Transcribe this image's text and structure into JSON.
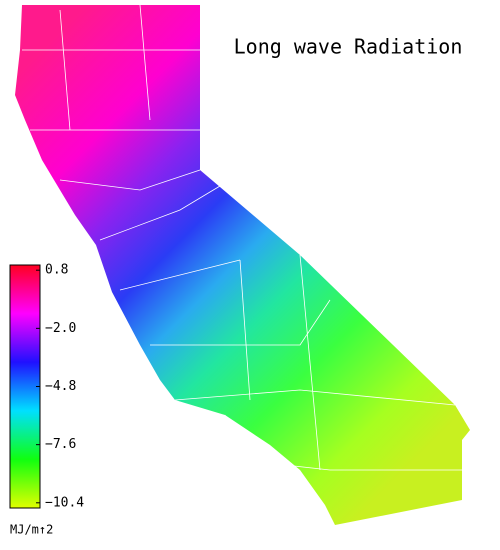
{
  "title": "Long wave Radiation",
  "colorbar": {
    "unit": "MJ/m↑2",
    "lim": [
      -10.65,
      1.05
    ],
    "ticks": [
      0.8,
      {
        "value": -2,
        "label": "−2.0"
      },
      {
        "value": -4.8,
        "label": "−4.8"
      },
      {
        "value": -7.6,
        "label": "−7.6"
      },
      {
        "value": -10.4,
        "label": "−10.4"
      }
    ]
  }
}
